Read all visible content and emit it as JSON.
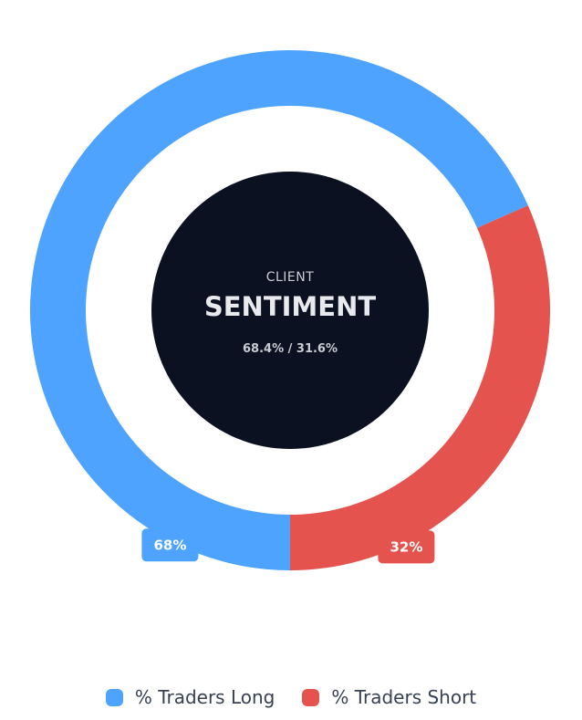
{
  "chart_data": {
    "type": "pie",
    "variant": "doughnut",
    "center": {
      "kicker": "CLIENT",
      "title": "SENTIMENT",
      "subtitle": "68.4% / 31.6%"
    },
    "series": [
      {
        "name": "% Traders Long",
        "value": 68.4,
        "data_label": "68%",
        "color": "#4da3fd"
      },
      {
        "name": "% Traders Short",
        "value": 31.6,
        "data_label": "32%",
        "color": "#e5534f"
      }
    ],
    "legend": {
      "placement": "bottom-center"
    },
    "center_color": "#0b1120"
  }
}
